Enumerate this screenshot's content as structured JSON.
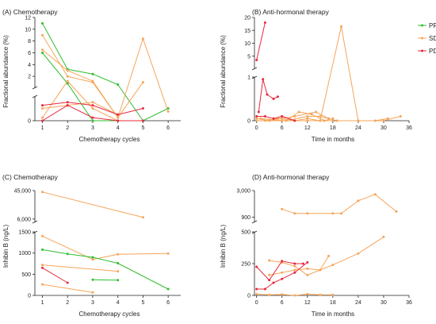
{
  "legend": [
    {
      "label": "PR",
      "color": "#2fbf2f"
    },
    {
      "label": "SD",
      "color": "#f5a55a"
    },
    {
      "label": "PD",
      "color": "#e8283c"
    }
  ],
  "chart_data": [
    {
      "id": "A",
      "type": "line",
      "title": "(A) Chemotherapy",
      "xlabel": "Chemotherapy cycles",
      "ylabel": "Fractional abundance (%)",
      "xlim": [
        0.7,
        6.5
      ],
      "xticks": [
        1,
        2,
        3,
        4,
        5,
        6
      ],
      "ylim_low": [
        0,
        0.4
      ],
      "ylim_high": [
        0,
        12
      ],
      "yticks_low": [
        0
      ],
      "yticks_high": [
        2,
        4,
        6,
        8,
        10,
        12
      ],
      "series": [
        {
          "group": "PR",
          "points": [
            [
              1,
              11.0
            ],
            [
              2,
              3.2
            ],
            [
              3,
              2.4
            ],
            [
              4,
              0.6
            ],
            [
              5,
              0.0
            ]
          ]
        },
        {
          "group": "PR",
          "points": [
            [
              1,
              6.0
            ],
            [
              2,
              0.8
            ],
            [
              3,
              0.0
            ],
            [
              4,
              0.0
            ],
            [
              5,
              0.0
            ],
            [
              6,
              0.2
            ]
          ]
        },
        {
          "group": "SD",
          "points": [
            [
              1,
              9.0
            ],
            [
              2,
              2.0
            ],
            [
              3,
              1.0
            ],
            [
              4,
              0.05
            ],
            [
              5,
              8.4
            ],
            [
              6,
              0.15
            ]
          ]
        },
        {
          "group": "SD",
          "points": [
            [
              1,
              6.5
            ],
            [
              2,
              3.0
            ],
            [
              3,
              1.2
            ],
            [
              4,
              0.05
            ],
            [
              5,
              1.0
            ]
          ]
        },
        {
          "group": "SD",
          "points": [
            [
              1,
              0.05
            ],
            [
              2,
              1.2
            ],
            [
              3,
              0.2
            ],
            [
              4,
              0.0
            ]
          ]
        },
        {
          "group": "SD",
          "points": [
            [
              1,
              0.2
            ],
            [
              2,
              0.25
            ],
            [
              3,
              0.3
            ],
            [
              4,
              0.1
            ]
          ]
        },
        {
          "group": "PD",
          "points": [
            [
              1,
              0.25
            ],
            [
              2,
              0.3
            ],
            [
              3,
              0.25
            ],
            [
              4,
              0.1
            ],
            [
              5,
              0.2
            ]
          ]
        },
        {
          "group": "PD",
          "points": [
            [
              1,
              0.0
            ],
            [
              2,
              0.25
            ],
            [
              3,
              0.05
            ],
            [
              4,
              0.0
            ],
            [
              5,
              0.0
            ]
          ]
        }
      ]
    },
    {
      "id": "B",
      "type": "line",
      "title": "(B) Anti-hormonal therapy",
      "xlabel": "Time in months",
      "ylabel": "Fractional abundance (%)",
      "xlim": [
        -0.5,
        36
      ],
      "xticks": [
        0,
        6,
        12,
        18,
        24,
        30,
        36
      ],
      "ylim_low": [
        0,
        1
      ],
      "ylim_high": [
        0,
        20
      ],
      "yticks_low": [
        0,
        1
      ],
      "yticks_high": [
        5,
        10,
        15,
        20
      ],
      "series": [
        {
          "group": "SD",
          "points": [
            [
              0,
              0.05
            ],
            [
              3,
              0.0
            ],
            [
              6,
              0.1
            ],
            [
              9,
              0.0
            ],
            [
              12,
              0.05
            ],
            [
              15,
              0.0
            ],
            [
              20,
              16.5
            ],
            [
              24,
              0.0
            ],
            [
              30,
              0.0
            ],
            [
              34,
              0.1
            ]
          ]
        },
        {
          "group": "SD",
          "points": [
            [
              1,
              0.05
            ],
            [
              4,
              0.02
            ],
            [
              7,
              0.0
            ],
            [
              10,
              0.2
            ],
            [
              13,
              0.15
            ],
            [
              16,
              0.0
            ],
            [
              18,
              0.05
            ]
          ]
        },
        {
          "group": "SD",
          "points": [
            [
              2,
              0.0
            ],
            [
              5,
              0.05
            ],
            [
              8,
              0.02
            ],
            [
              12,
              0.1
            ],
            [
              15,
              0.1
            ],
            [
              19,
              0.0
            ],
            [
              24,
              0.0
            ],
            [
              28,
              0.0
            ],
            [
              31,
              0.05
            ]
          ]
        },
        {
          "group": "SD",
          "points": [
            [
              3,
              0.02
            ],
            [
              6,
              0.05
            ],
            [
              9,
              0.1
            ],
            [
              14,
              0.2
            ],
            [
              17,
              0.05
            ]
          ]
        },
        {
          "group": "SD",
          "points": [
            [
              0,
              0.0
            ],
            [
              6,
              0.0
            ],
            [
              12,
              0.0
            ],
            [
              18,
              0.0
            ]
          ]
        },
        {
          "group": "PD",
          "points": [
            [
              0,
              3.5
            ],
            [
              2,
              18.0
            ]
          ]
        },
        {
          "group": "PD",
          "points": [
            [
              0.5,
              0.2
            ],
            [
              1.5,
              0.95
            ],
            [
              2.5,
              0.6
            ],
            [
              4,
              0.5
            ],
            [
              5,
              0.55
            ]
          ]
        },
        {
          "group": "PD",
          "points": [
            [
              0,
              0.1
            ],
            [
              2,
              0.1
            ],
            [
              4,
              0.05
            ],
            [
              6,
              0.1
            ],
            [
              9,
              0.0
            ]
          ]
        }
      ]
    },
    {
      "id": "C",
      "type": "line",
      "title": "(C) Chemotherapy",
      "xlabel": "Chemotherapy cycles",
      "ylabel": "Inhibin B (ng/L)",
      "xlim": [
        0.7,
        6.5
      ],
      "xticks": [
        1,
        2,
        3,
        4,
        5,
        6
      ],
      "ylim_low": [
        0,
        1500
      ],
      "ylim_high": [
        1500,
        45000
      ],
      "yticks_low": [
        0,
        500,
        1000,
        1500
      ],
      "yticks_high": [
        6000,
        45000
      ],
      "series": [
        {
          "group": "SD",
          "points": [
            [
              1,
              43000
            ],
            [
              5,
              8500
            ]
          ]
        },
        {
          "group": "SD",
          "points": [
            [
              1,
              1400
            ],
            [
              3,
              850
            ],
            [
              4,
              970
            ],
            [
              6,
              990
            ]
          ]
        },
        {
          "group": "SD",
          "points": [
            [
              1,
              720
            ],
            [
              4,
              570
            ]
          ]
        },
        {
          "group": "SD",
          "points": [
            [
              1,
              260
            ],
            [
              3,
              70
            ]
          ]
        },
        {
          "group": "PR",
          "points": [
            [
              1,
              1080
            ],
            [
              2,
              980
            ],
            [
              3,
              900
            ],
            [
              4,
              760
            ],
            [
              6,
              150
            ]
          ]
        },
        {
          "group": "PR",
          "points": [
            [
              3,
              370
            ],
            [
              4,
              360
            ]
          ]
        },
        {
          "group": "PD",
          "points": [
            [
              1,
              650
            ],
            [
              2,
              300
            ]
          ]
        }
      ]
    },
    {
      "id": "D",
      "type": "line",
      "title": "(D) Anti-hormonal therapy",
      "xlabel": "Time in months",
      "ylabel": "Inhibin B (ng/L)",
      "xlim": [
        -0.5,
        36
      ],
      "xticks": [
        0,
        6,
        12,
        18,
        24,
        30,
        36
      ],
      "ylim_low": [
        0,
        500
      ],
      "ylim_high": [
        500,
        3000
      ],
      "yticks_low": [
        0,
        250,
        500
      ],
      "yticks_high": [
        900,
        3000
      ],
      "series": [
        {
          "group": "SD",
          "points": [
            [
              6,
              1550
            ],
            [
              9,
              1200
            ],
            [
              12,
              1200
            ],
            [
              18,
              1200
            ],
            [
              20,
              1200
            ],
            [
              24,
              2200
            ],
            [
              28,
              2700
            ],
            [
              33,
              1350
            ]
          ]
        },
        {
          "group": "SD",
          "points": [
            [
              3,
              160
            ],
            [
              6,
              180
            ],
            [
              9,
              200
            ],
            [
              12,
              210
            ],
            [
              15,
              200
            ],
            [
              18,
              240
            ],
            [
              24,
              330
            ],
            [
              30,
              460
            ]
          ]
        },
        {
          "group": "SD",
          "points": [
            [
              3,
              275
            ],
            [
              6,
              260
            ],
            [
              9,
              230
            ],
            [
              12,
              160
            ],
            [
              15,
              200
            ],
            [
              17,
              310
            ]
          ]
        },
        {
          "group": "SD",
          "points": [
            [
              0,
              10
            ],
            [
              3,
              5
            ],
            [
              6,
              8
            ],
            [
              9,
              0
            ],
            [
              12,
              10
            ],
            [
              15,
              5
            ],
            [
              18,
              5
            ]
          ]
        },
        {
          "group": "PD",
          "points": [
            [
              0,
              225
            ],
            [
              3,
              120
            ],
            [
              6,
              270
            ],
            [
              9,
              250
            ],
            [
              11,
              250
            ]
          ]
        },
        {
          "group": "PD",
          "points": [
            [
              0,
              50
            ],
            [
              2,
              50
            ],
            [
              4,
              100
            ],
            [
              6,
              130
            ],
            [
              9,
              180
            ],
            [
              12,
              260
            ]
          ]
        }
      ]
    }
  ]
}
